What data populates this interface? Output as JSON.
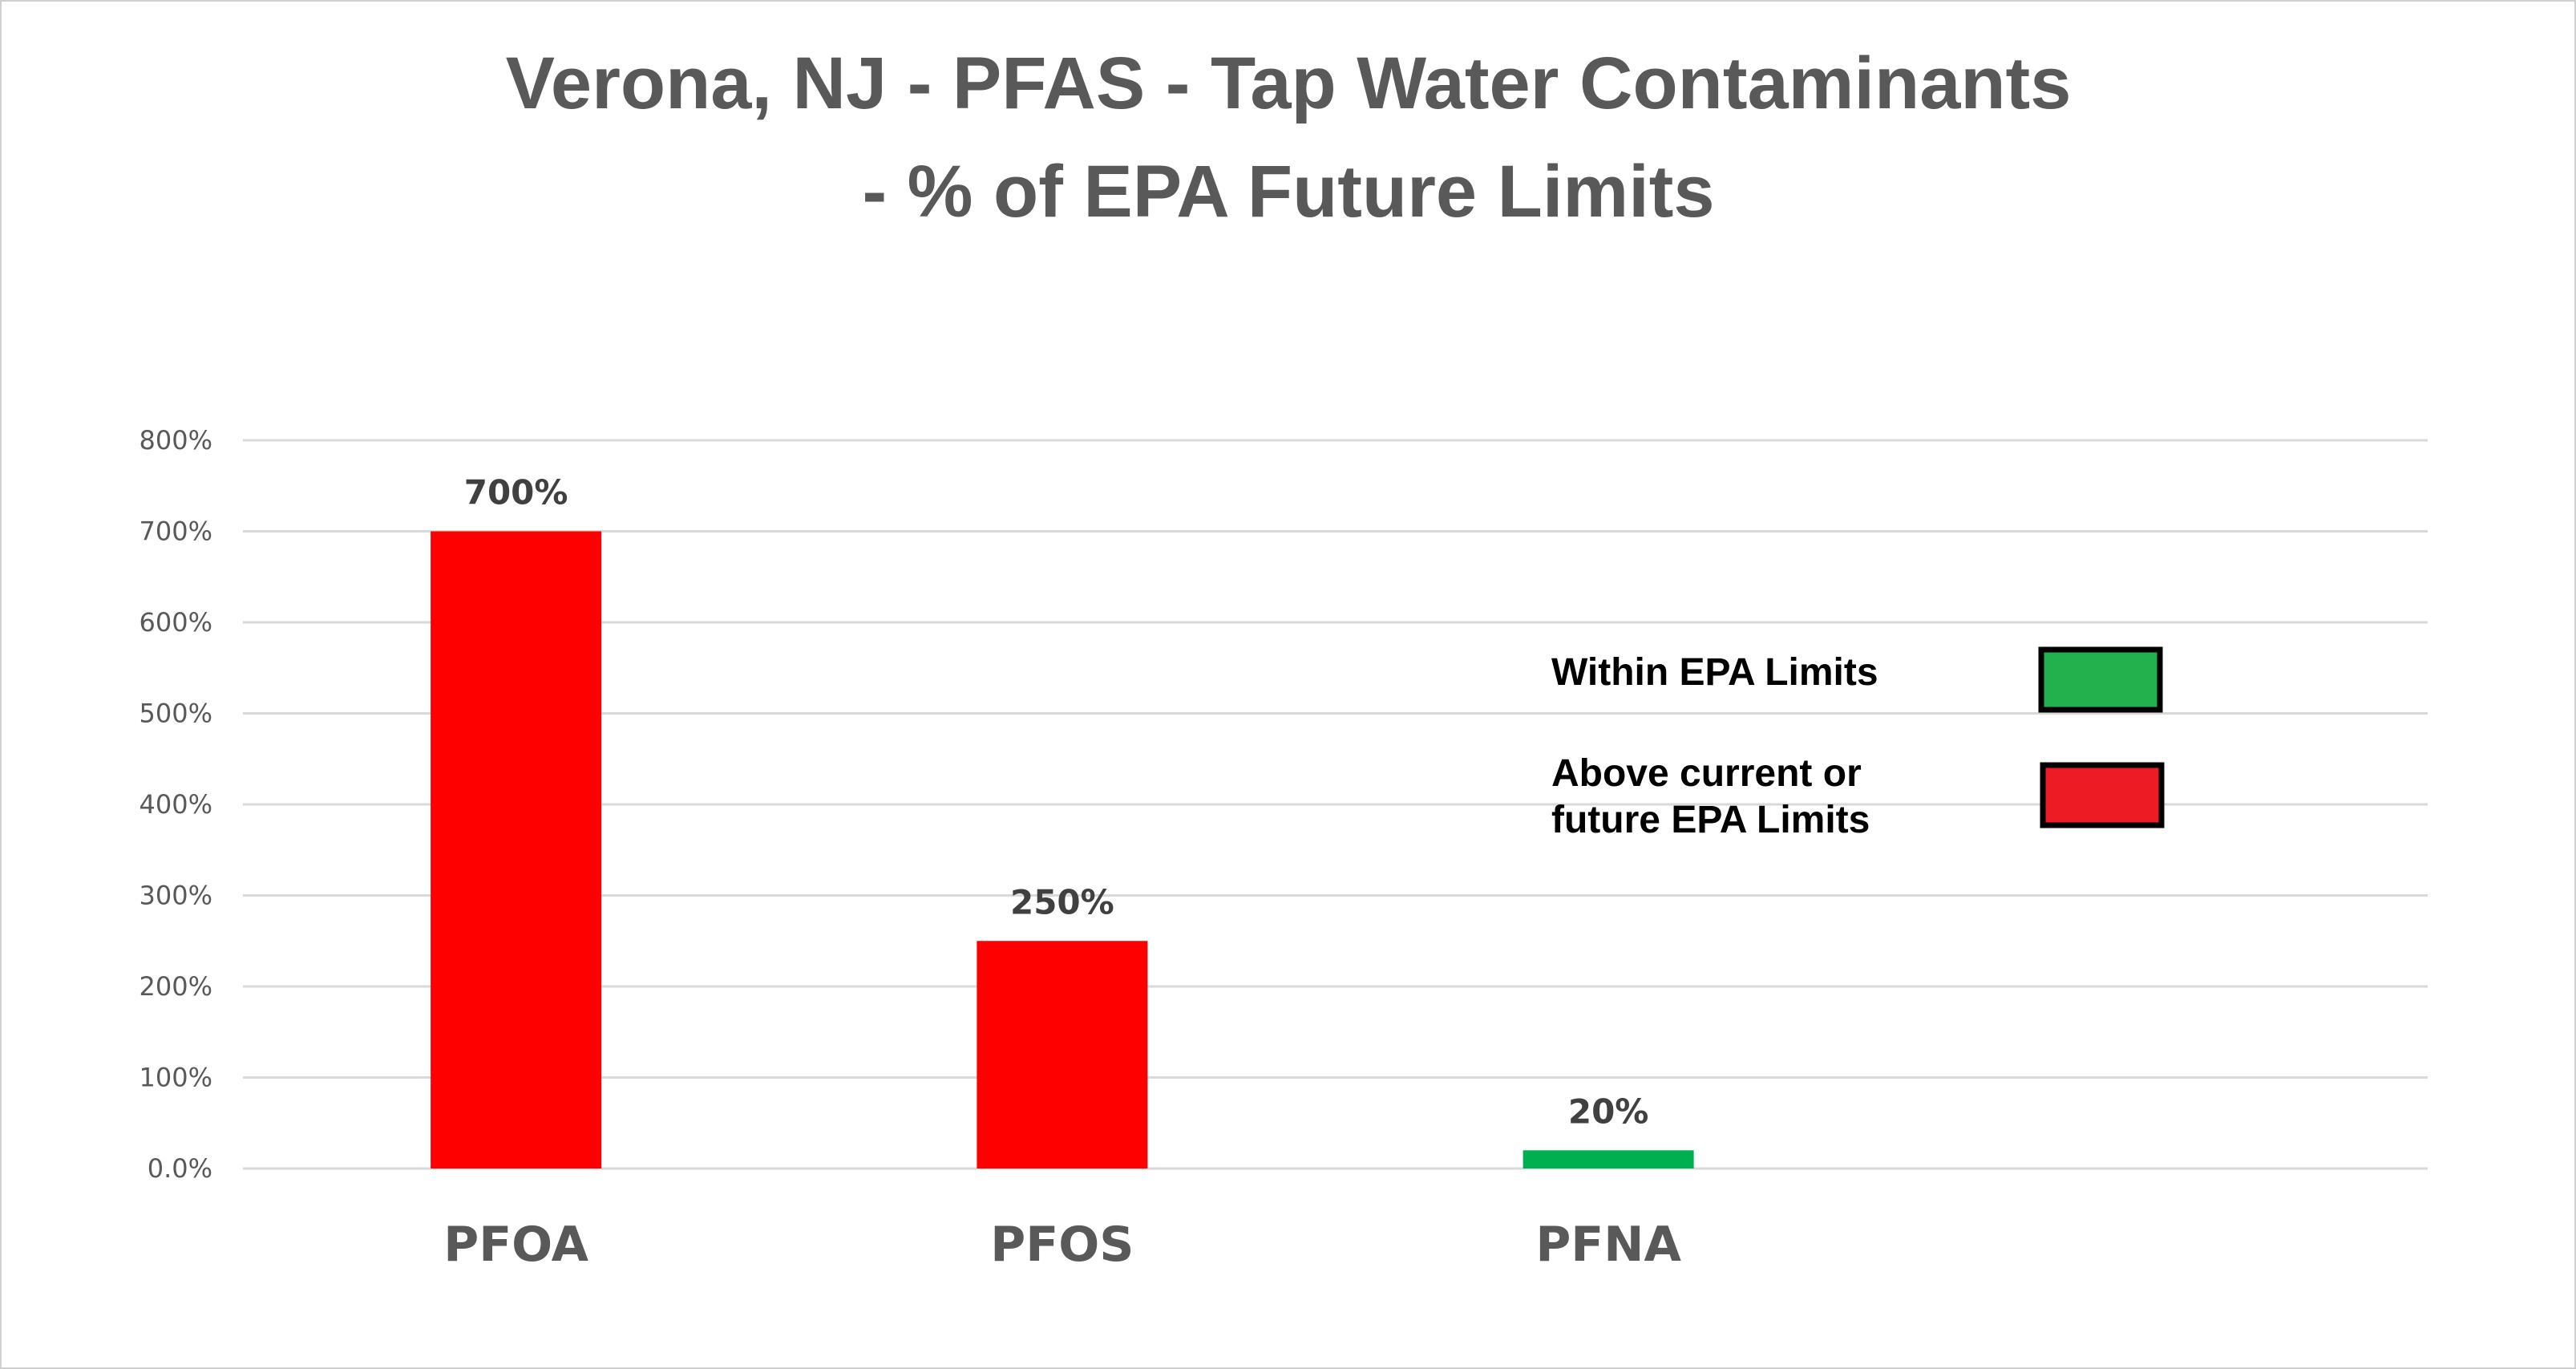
{
  "chart_data": {
    "type": "bar",
    "title": [
      "Verona, NJ - PFAS - Tap Water Contaminants",
      "- % of EPA Future Limits"
    ],
    "categories": [
      "PFOA",
      "PFOS",
      "PFNA"
    ],
    "values": [
      700,
      250,
      20
    ],
    "data_labels": [
      "700%",
      "250%",
      "20%"
    ],
    "bar_colors": [
      "#ff0000",
      "#ff0000",
      "#00b050"
    ],
    "ylim": [
      0,
      800
    ],
    "yticks": [
      0,
      100,
      200,
      300,
      400,
      500,
      600,
      700,
      800
    ],
    "ytick_labels": [
      "0.0%",
      "100%",
      "200%",
      "300%",
      "400%",
      "500%",
      "600%",
      "700%",
      "800%"
    ],
    "xlabel": "",
    "ylabel": "",
    "grid": true,
    "legend": {
      "placement": "right",
      "entries": [
        {
          "lines": [
            "Within  EPA Limits"
          ],
          "color": "#22b14c"
        },
        {
          "lines": [
            "Above current or",
            "future EPA Limits"
          ],
          "color": "#ed1c24"
        }
      ]
    }
  }
}
